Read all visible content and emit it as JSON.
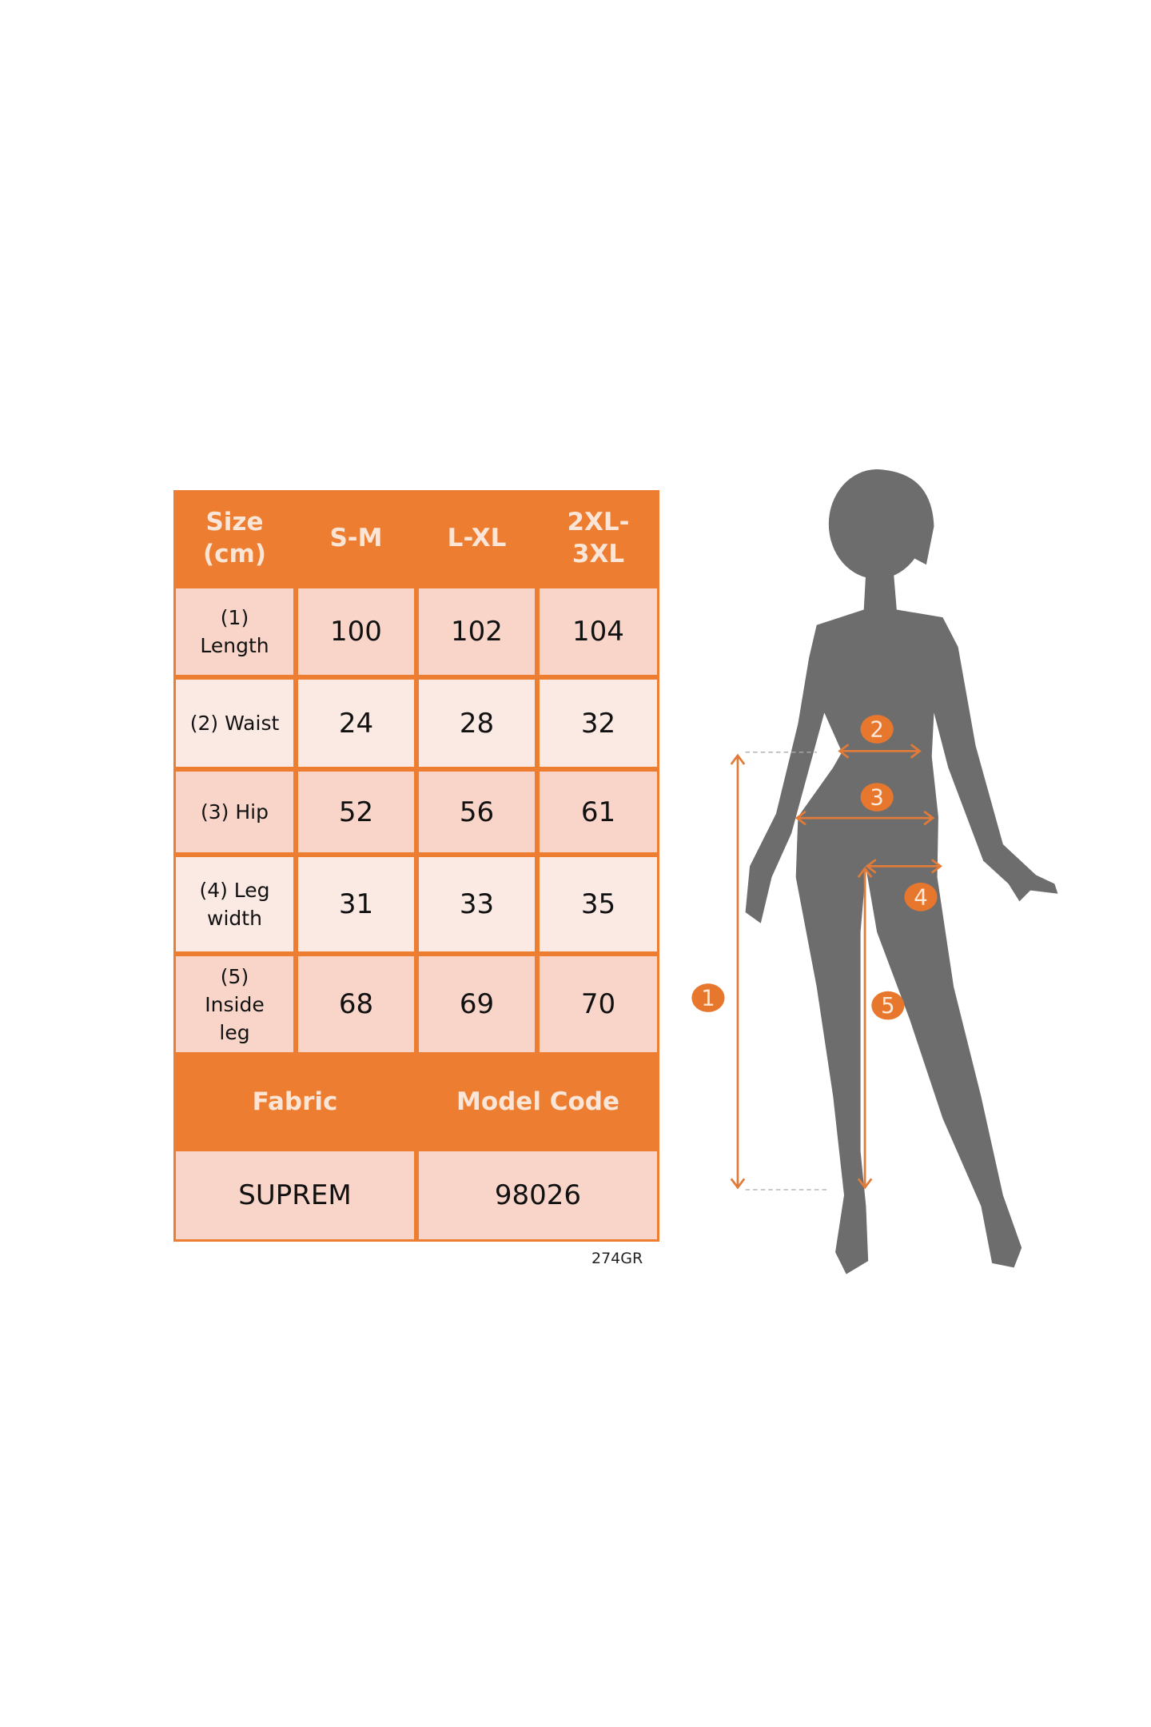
{
  "table": {
    "header": [
      "Size\n(cm)",
      "S-M",
      "L-XL",
      "2XL-\n3XL"
    ],
    "rows": [
      {
        "label": "(1)\nLength",
        "values": [
          "100",
          "102",
          "104"
        ]
      },
      {
        "label": "(2) Waist",
        "values": [
          "24",
          "28",
          "32"
        ]
      },
      {
        "label": "(3) Hip",
        "values": [
          "52",
          "56",
          "61"
        ]
      },
      {
        "label": "(4) Leg\nwidth",
        "values": [
          "31",
          "33",
          "35"
        ]
      },
      {
        "label": "(5)\nInside\nleg",
        "values": [
          "68",
          "69",
          "70"
        ]
      }
    ],
    "footer_headers": [
      "Fabric",
      "Model Code"
    ],
    "footer_values": [
      "SUPREM",
      "98026"
    ]
  },
  "code": "274GR",
  "figure": {
    "markers": [
      "1",
      "2",
      "3",
      "4",
      "5"
    ]
  },
  "colors": {
    "accent": "#ed7d31",
    "silhouette": "#6d6d6d",
    "cell_dark": "#f8d5c8",
    "cell_light": "#fbe9e3"
  }
}
